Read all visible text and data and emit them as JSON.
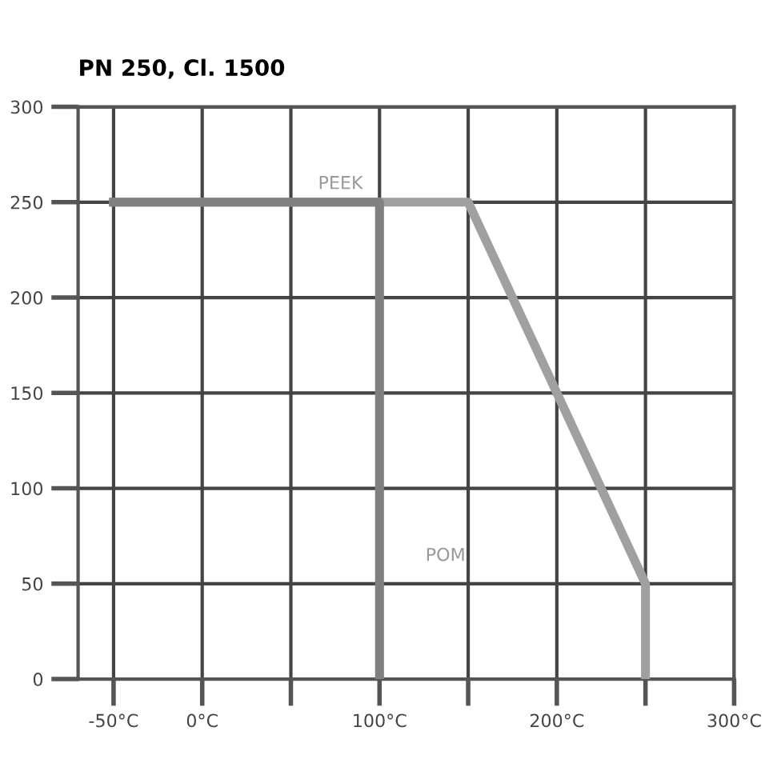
{
  "chart_data": {
    "type": "line",
    "title": "PN 250, Cl. 1500",
    "series": [
      {
        "x": [
          -50,
          150,
          250,
          250
        ],
        "values": [
          250,
          250,
          50,
          0
        ],
        "color": "#a0a0a0"
      },
      {
        "x": [
          -50,
          100,
          100
        ],
        "values": [
          250,
          250,
          0
        ],
        "color": "#808080"
      }
    ],
    "annotations": [
      "PEEK",
      "POM"
    ],
    "xlim": [
      -70,
      300
    ],
    "ylim": [
      0,
      300
    ],
    "xticks": [
      {
        "value": -50,
        "label": "-50°C"
      },
      {
        "value": 0,
        "label": "0°C"
      },
      {
        "value": 50,
        "label": null
      },
      {
        "value": 100,
        "label": "100°C"
      },
      {
        "value": 150,
        "label": null
      },
      {
        "value": 200,
        "label": "200°C"
      },
      {
        "value": 250,
        "label": null
      },
      {
        "value": 300,
        "label": "300°C"
      }
    ],
    "yticks": [
      0,
      50,
      100,
      150,
      200,
      250,
      300
    ],
    "grid": true,
    "marker": "none",
    "line_style": "solid"
  }
}
